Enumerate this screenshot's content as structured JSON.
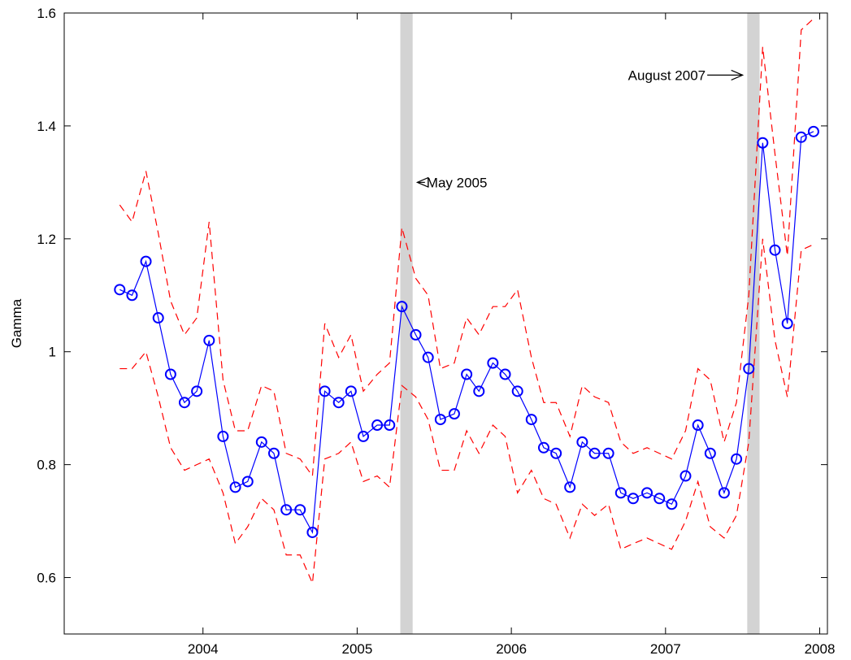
{
  "chart_data": {
    "type": "line",
    "title": "",
    "xlabel": "",
    "ylabel": "Gamma",
    "xlim": [
      2003.1,
      2008.05
    ],
    "ylim": [
      0.5,
      1.6
    ],
    "grid": false,
    "x_ticks": [
      2004,
      2005,
      2006,
      2007,
      2008
    ],
    "x_tick_labels": [
      "2004",
      "2005",
      "2006",
      "2007",
      "2008"
    ],
    "y_ticks": [
      0.6,
      0.8,
      1.0,
      1.2,
      1.4,
      1.6
    ],
    "y_tick_labels": [
      "0.6",
      "0.8",
      "1",
      "1.2",
      "1.4",
      "1.6"
    ],
    "colors": {
      "estimate": "#0000ff",
      "bands": "#ff0000",
      "shade": "#d3d3d3",
      "axis": "#000000"
    },
    "series": [
      {
        "line_style": "solid-circle-markers",
        "x": [
          2003.46,
          2003.54,
          2003.63,
          2003.71,
          2003.79,
          2003.88,
          2003.96,
          2004.04,
          2004.13,
          2004.21,
          2004.29,
          2004.38,
          2004.46,
          2004.54,
          2004.63,
          2004.71,
          2004.79,
          2004.88,
          2004.96,
          2005.04,
          2005.13,
          2005.21,
          2005.29,
          2005.38,
          2005.46,
          2005.54,
          2005.63,
          2005.71,
          2005.79,
          2005.88,
          2005.96,
          2006.04,
          2006.13,
          2006.21,
          2006.29,
          2006.38,
          2006.46,
          2006.54,
          2006.63,
          2006.71,
          2006.79,
          2006.88,
          2006.96,
          2007.04,
          2007.13,
          2007.21,
          2007.29,
          2007.38,
          2007.46,
          2007.54,
          2007.63,
          2007.71,
          2007.79,
          2007.88,
          2007.96
        ],
        "values": [
          1.11,
          1.1,
          1.16,
          1.06,
          0.96,
          0.91,
          0.93,
          1.02,
          0.85,
          0.76,
          0.77,
          0.84,
          0.82,
          0.72,
          0.72,
          0.68,
          0.93,
          0.91,
          0.93,
          0.85,
          0.87,
          0.87,
          1.08,
          1.03,
          0.99,
          0.88,
          0.89,
          0.96,
          0.93,
          0.98,
          0.96,
          0.93,
          0.88,
          0.83,
          0.82,
          0.76,
          0.84,
          0.82,
          0.82,
          0.75,
          0.74,
          0.75,
          0.74,
          0.73,
          0.78,
          0.87,
          0.82,
          0.75,
          0.81,
          0.97,
          1.37,
          1.18,
          1.05,
          1.38,
          1.39
        ]
      },
      {
        "line_style": "dashed",
        "x": [
          2003.46,
          2003.54,
          2003.63,
          2003.71,
          2003.79,
          2003.88,
          2003.96,
          2004.04,
          2004.13,
          2004.21,
          2004.29,
          2004.38,
          2004.46,
          2004.54,
          2004.63,
          2004.71,
          2004.79,
          2004.88,
          2004.96,
          2005.04,
          2005.13,
          2005.21,
          2005.29,
          2005.38,
          2005.46,
          2005.54,
          2005.63,
          2005.71,
          2005.79,
          2005.88,
          2005.96,
          2006.04,
          2006.13,
          2006.21,
          2006.29,
          2006.38,
          2006.46,
          2006.54,
          2006.63,
          2006.71,
          2006.79,
          2006.88,
          2006.96,
          2007.04,
          2007.13,
          2007.21,
          2007.29,
          2007.38,
          2007.46,
          2007.54,
          2007.63,
          2007.71,
          2007.79,
          2007.88,
          2007.96
        ],
        "values": [
          1.26,
          1.23,
          1.32,
          1.21,
          1.09,
          1.03,
          1.06,
          1.23,
          0.95,
          0.86,
          0.86,
          0.94,
          0.93,
          0.82,
          0.81,
          0.78,
          1.05,
          0.99,
          1.03,
          0.93,
          0.96,
          0.98,
          1.22,
          1.13,
          1.1,
          0.97,
          0.98,
          1.06,
          1.03,
          1.08,
          1.08,
          1.11,
          0.99,
          0.91,
          0.91,
          0.85,
          0.94,
          0.92,
          0.91,
          0.84,
          0.82,
          0.83,
          0.82,
          0.81,
          0.86,
          0.97,
          0.95,
          0.84,
          0.91,
          1.1,
          1.54,
          1.35,
          1.17,
          1.57,
          1.59
        ]
      },
      {
        "line_style": "dashed",
        "x": [
          2003.46,
          2003.54,
          2003.63,
          2003.71,
          2003.79,
          2003.88,
          2003.96,
          2004.04,
          2004.13,
          2004.21,
          2004.29,
          2004.38,
          2004.46,
          2004.54,
          2004.63,
          2004.71,
          2004.79,
          2004.88,
          2004.96,
          2005.04,
          2005.13,
          2005.21,
          2005.29,
          2005.38,
          2005.46,
          2005.54,
          2005.63,
          2005.71,
          2005.79,
          2005.88,
          2005.96,
          2006.04,
          2006.13,
          2006.21,
          2006.29,
          2006.38,
          2006.46,
          2006.54,
          2006.63,
          2006.71,
          2006.79,
          2006.88,
          2006.96,
          2007.04,
          2007.13,
          2007.21,
          2007.29,
          2007.38,
          2007.46,
          2007.54,
          2007.63,
          2007.71,
          2007.79,
          2007.88,
          2007.96
        ],
        "values": [
          0.97,
          0.97,
          1.0,
          0.92,
          0.83,
          0.79,
          0.8,
          0.81,
          0.75,
          0.66,
          0.69,
          0.74,
          0.72,
          0.64,
          0.64,
          0.59,
          0.81,
          0.82,
          0.84,
          0.77,
          0.78,
          0.76,
          0.94,
          0.92,
          0.88,
          0.79,
          0.79,
          0.86,
          0.82,
          0.87,
          0.85,
          0.75,
          0.79,
          0.74,
          0.73,
          0.67,
          0.73,
          0.71,
          0.73,
          0.65,
          0.66,
          0.67,
          0.66,
          0.65,
          0.7,
          0.77,
          0.69,
          0.67,
          0.71,
          0.84,
          1.2,
          1.02,
          0.92,
          1.18,
          1.19
        ]
      }
    ],
    "shaded_regions": [
      {
        "x": [
          2005.28,
          2005.36
        ]
      },
      {
        "x": [
          2007.53,
          2007.61
        ]
      }
    ],
    "annotations": [
      {
        "text": "May 2005",
        "x": 2005.45,
        "y": 1.3,
        "arrow": "left",
        "arrow_to_x": 2005.39
      },
      {
        "text": "August 2007",
        "x": 2007.26,
        "y": 1.49,
        "arrow": "right",
        "arrow_to_x": 2007.5
      }
    ]
  }
}
